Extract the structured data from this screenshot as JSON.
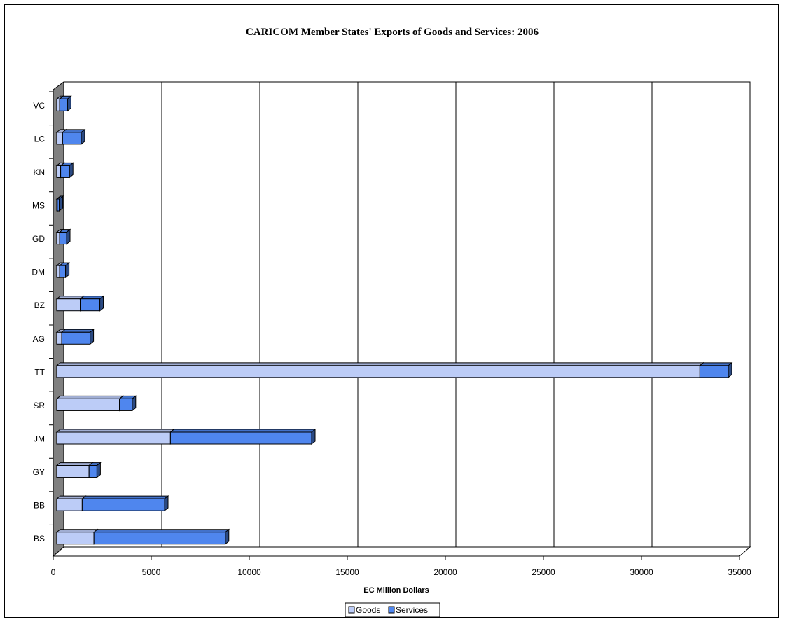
{
  "chart_data": {
    "type": "bar",
    "orientation": "horizontal",
    "stacked": true,
    "three_d": true,
    "title": "CARICOM Member States' Exports of Goods and Services: 2006",
    "xlabel": "EC Million Dollars",
    "ylabel": "",
    "xlim": [
      0,
      35000
    ],
    "x_ticks": [
      "0",
      "5000",
      "10000",
      "15000",
      "20000",
      "25000",
      "30000",
      "35000"
    ],
    "categories": [
      "BS",
      "BB",
      "GY",
      "JM",
      "SR",
      "TT",
      "AG",
      "BZ",
      "DM",
      "GD",
      "MS",
      "KN",
      "LC",
      "VC"
    ],
    "series": [
      {
        "name": "Goods",
        "color": "#bcccf7",
        "values": [
          1900,
          1300,
          1650,
          5800,
          3200,
          32800,
          250,
          1200,
          150,
          150,
          30,
          200,
          300,
          150
        ]
      },
      {
        "name": "Services",
        "color": "#4f86ee",
        "values": [
          6700,
          4200,
          400,
          7200,
          650,
          1450,
          1450,
          1000,
          300,
          350,
          100,
          450,
          950,
          400
        ]
      }
    ],
    "grid": "vertical",
    "legend_position": "bottom-center"
  }
}
